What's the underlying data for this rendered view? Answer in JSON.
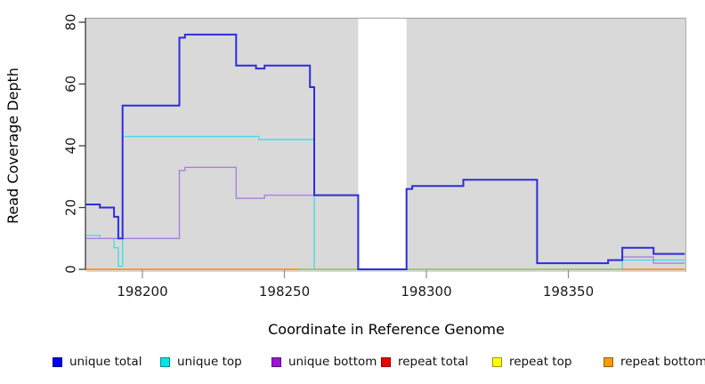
{
  "chart_data": {
    "type": "line",
    "subtype": "step-after",
    "title": "",
    "xlabel": "Coordinate in Reference Genome",
    "ylabel": "Read Coverage Depth",
    "xlim": [
      198180,
      198391
    ],
    "ylim": [
      0,
      80
    ],
    "x_ticks": [
      198200,
      198250,
      198300,
      198350
    ],
    "y_ticks": [
      0,
      20,
      40,
      60,
      80
    ],
    "grid": false,
    "plot_bg": "#d9d9d9",
    "gap_region": {
      "x0": 198276,
      "x1": 198293,
      "fill": "#ffffff",
      "note": "white vertical band with no gray background; total coverage drops to 0 here"
    },
    "series": [
      {
        "name": "unique total",
        "color": "#2c2cdd",
        "width": 2,
        "steps": [
          [
            198180,
            21
          ],
          [
            198185,
            20
          ],
          [
            198190,
            17
          ],
          [
            198191.5,
            10
          ],
          [
            198193,
            53
          ],
          [
            198213,
            75
          ],
          [
            198215,
            76
          ],
          [
            198233,
            66
          ],
          [
            198240,
            65
          ],
          [
            198243,
            66
          ],
          [
            198259,
            59
          ],
          [
            198260.5,
            24
          ],
          [
            198276,
            0
          ],
          [
            198293,
            26
          ],
          [
            198295,
            27
          ],
          [
            198313,
            29
          ],
          [
            198339,
            2
          ],
          [
            198364,
            3
          ],
          [
            198369,
            7
          ],
          [
            198380,
            5
          ]
        ]
      },
      {
        "name": "unique top",
        "color": "#45dee2",
        "width": 1.4,
        "steps": [
          [
            198180,
            11
          ],
          [
            198185,
            10
          ],
          [
            198190,
            7
          ],
          [
            198191.5,
            1
          ],
          [
            198193,
            43
          ],
          [
            198241,
            42
          ],
          [
            198260.5,
            0
          ],
          [
            198369,
            3
          ]
        ]
      },
      {
        "name": "unique bottom",
        "color": "#ab7fdf",
        "width": 1.4,
        "steps": [
          [
            198180,
            10
          ],
          [
            198213,
            32
          ],
          [
            198215,
            33
          ],
          [
            198233,
            23
          ],
          [
            198243,
            24
          ],
          [
            198260.5,
            24
          ],
          [
            198276,
            0
          ],
          [
            198293,
            26
          ],
          [
            198295,
            27
          ],
          [
            198313,
            29
          ],
          [
            198339,
            2
          ],
          [
            198364,
            3
          ],
          [
            198369,
            4
          ],
          [
            198380,
            2
          ]
        ]
      },
      {
        "name": "repeat total",
        "color": "#8b0000",
        "width": 1.2,
        "steps": [
          [
            198180,
            0
          ]
        ]
      },
      {
        "name": "repeat top",
        "color": "#ffff00",
        "width": 1.2,
        "steps": [
          [
            198180,
            0
          ]
        ]
      },
      {
        "name": "repeat bottom",
        "color": "#ff9414",
        "width": 1.6,
        "steps": [
          [
            198180,
            0
          ]
        ]
      }
    ],
    "baseline_segments": [
      {
        "color": "#ff9414",
        "x0": 198180,
        "x1": 198255,
        "note": "orange repeat-bottom line visible at 0"
      },
      {
        "color": "#8ecd8e",
        "x0": 198255,
        "x1": 198369,
        "note": "pale green line visible at 0"
      },
      {
        "color": "#ff9414",
        "x0": 198369,
        "x1": 198391,
        "note": "orange repeat-bottom line visible at 0"
      }
    ],
    "legend_position": "bottom"
  },
  "legend": {
    "items": [
      {
        "label": "unique total",
        "color": "#0000ee"
      },
      {
        "label": "unique top",
        "color": "#00e5e8"
      },
      {
        "label": "unique bottom",
        "color": "#9c13d4"
      },
      {
        "label": "repeat total",
        "color": "#ee0000"
      },
      {
        "label": "repeat top",
        "color": "#ffff00"
      },
      {
        "label": "repeat bottom",
        "color": "#ff9b00"
      }
    ]
  }
}
